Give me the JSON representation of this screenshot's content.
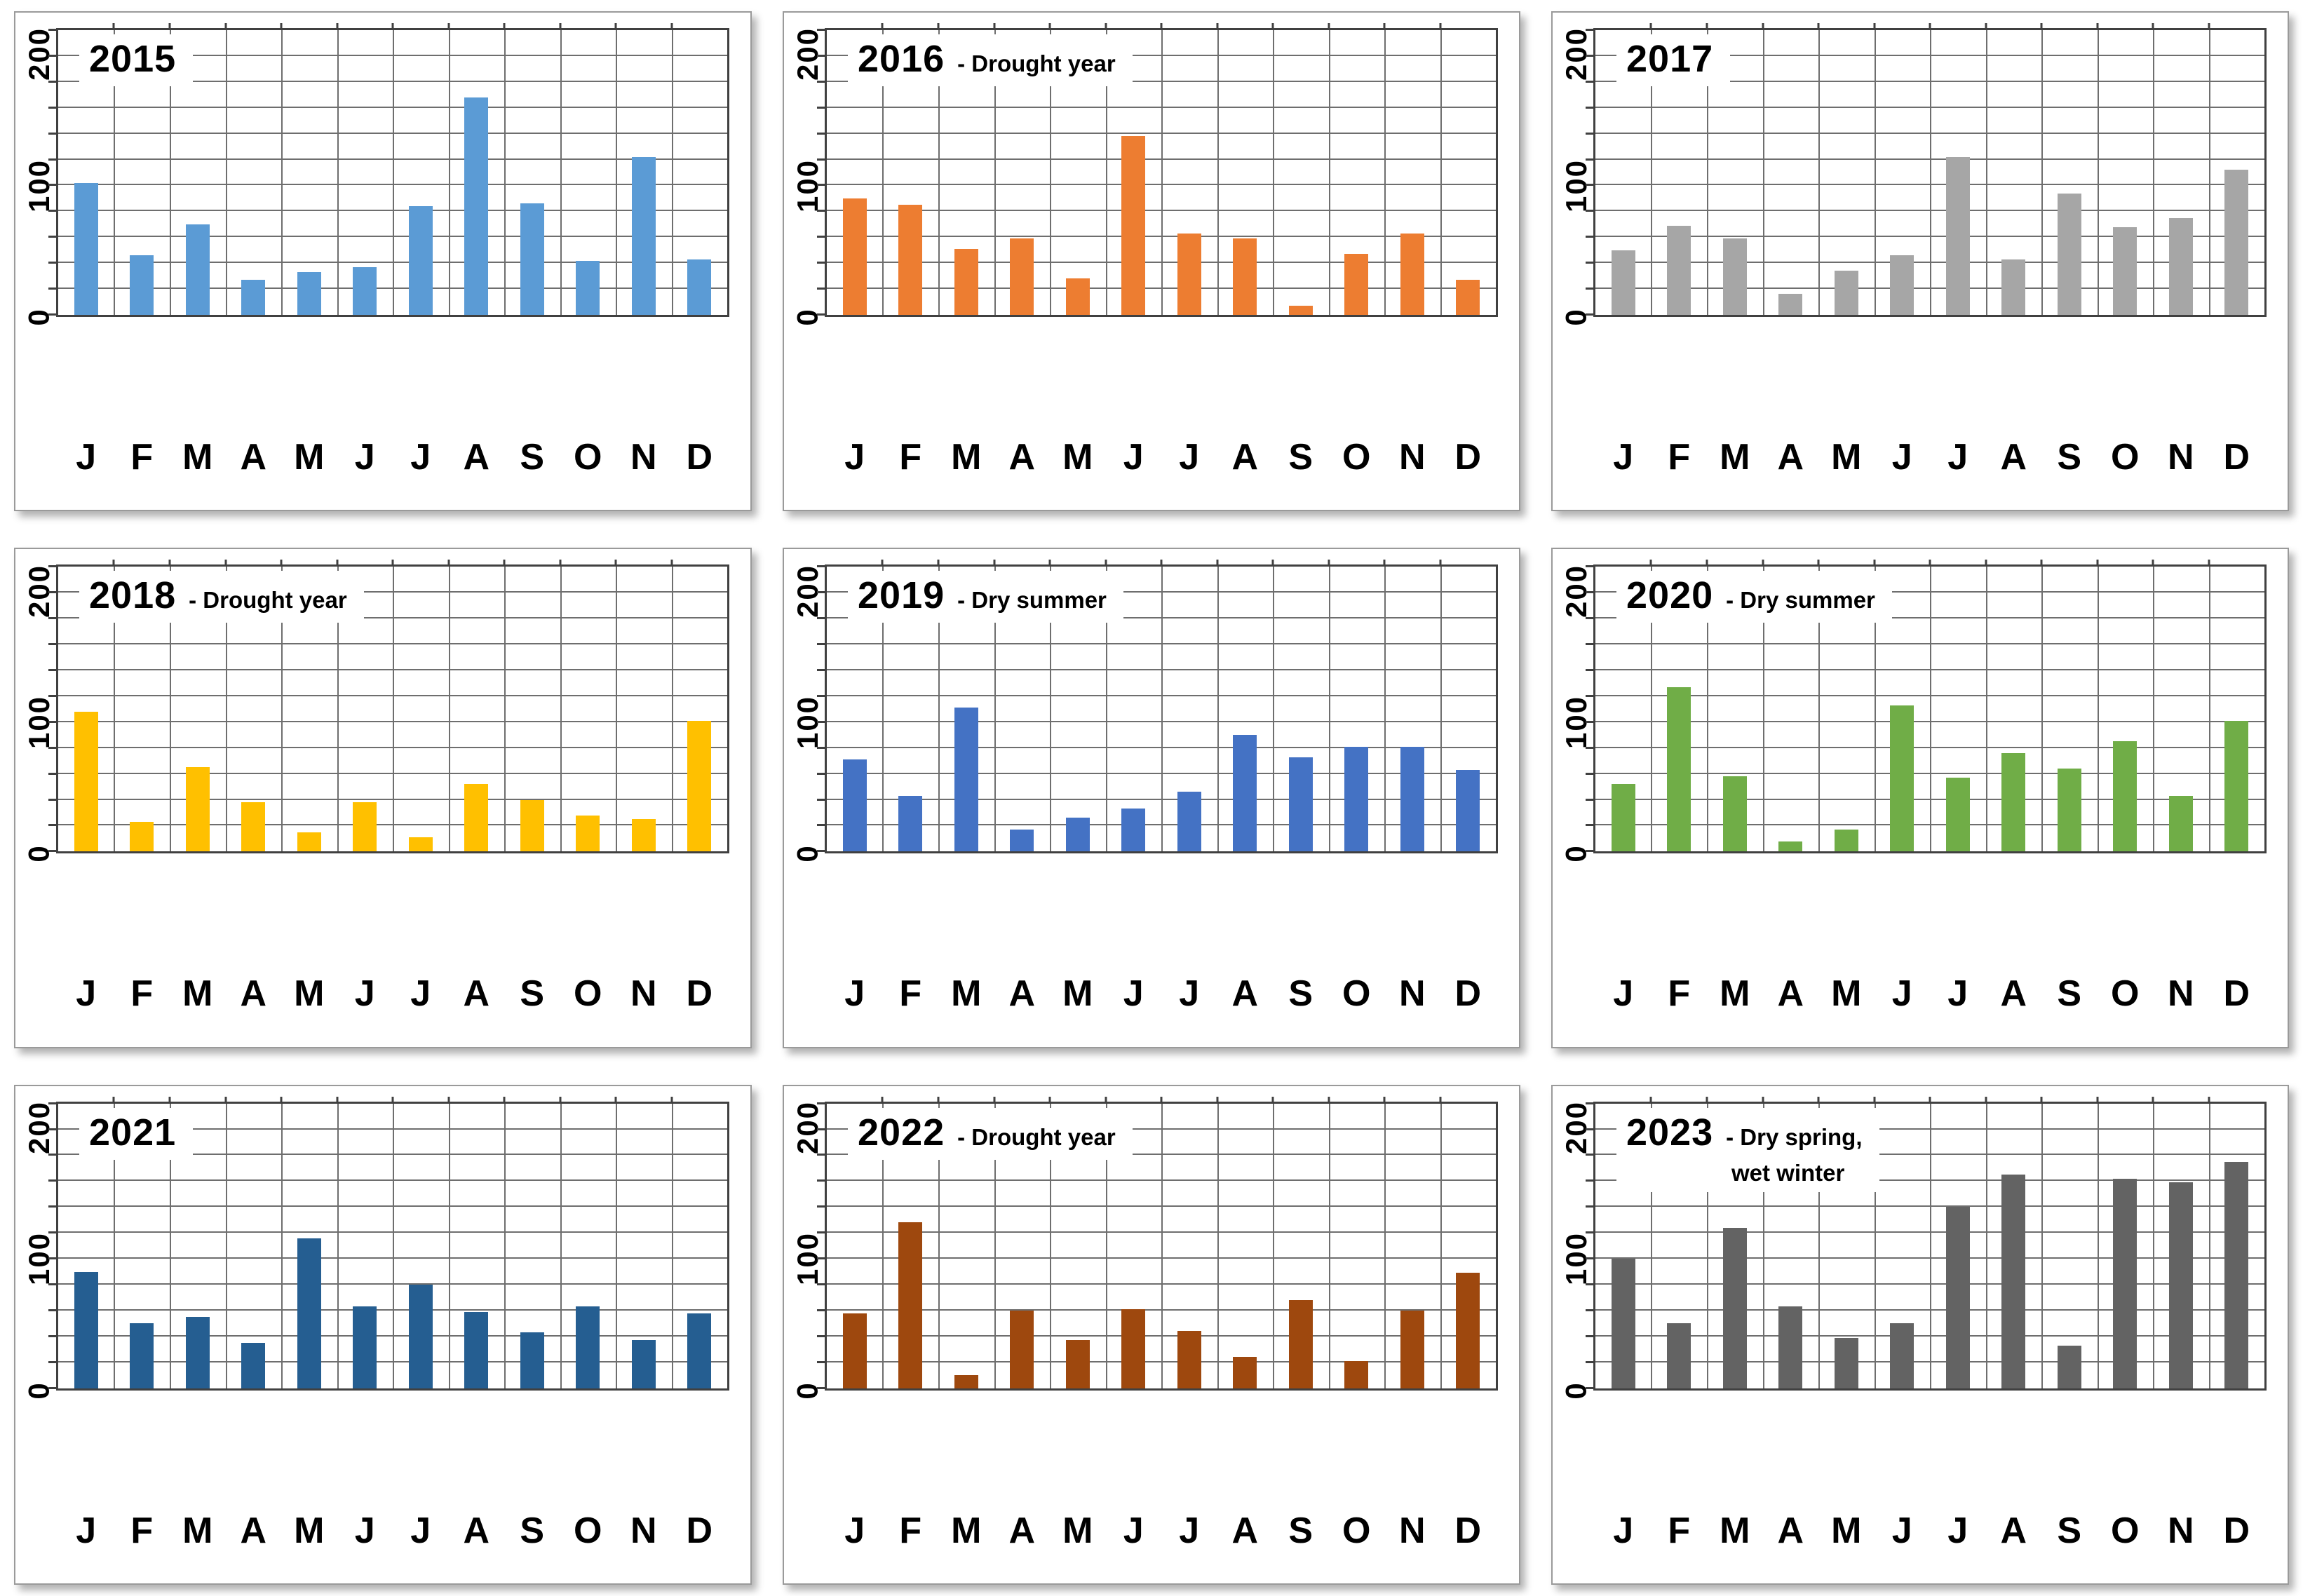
{
  "page": {
    "background": "#ffffff",
    "grid_color": "#6e6e6e",
    "axis_color": "#404040"
  },
  "months": [
    "J",
    "F",
    "M",
    "A",
    "M",
    "J",
    "J",
    "A",
    "S",
    "O",
    "N",
    "D"
  ],
  "axis": {
    "ymax": 220,
    "step": 20,
    "tick_labels": [
      {
        "value": 200,
        "label": "200"
      },
      {
        "value": 100,
        "label": "100"
      },
      {
        "value": 0,
        "label": "0"
      }
    ]
  },
  "chart_data": [
    {
      "type": "bar",
      "year": "2015",
      "note": "",
      "note2": "",
      "color": "#5B9BD5",
      "ylim": [
        0,
        220
      ],
      "values": [
        102,
        46,
        70,
        27,
        33,
        37,
        84,
        168,
        86,
        42,
        122,
        43
      ]
    },
    {
      "type": "bar",
      "year": "2016",
      "note": "- Drought year",
      "note2": "",
      "color": "#ED7D31",
      "ylim": [
        0,
        220
      ],
      "values": [
        90,
        85,
        51,
        59,
        28,
        138,
        63,
        59,
        7,
        47,
        63,
        27
      ]
    },
    {
      "type": "bar",
      "year": "2017",
      "note": "",
      "note2": "",
      "color": "#A6A6A6",
      "ylim": [
        0,
        220
      ],
      "values": [
        50,
        69,
        59,
        16,
        34,
        46,
        122,
        43,
        94,
        68,
        75,
        112
      ]
    },
    {
      "type": "bar",
      "year": "2018",
      "note": "- Drought year",
      "note2": "",
      "color": "#FFC000",
      "ylim": [
        0,
        220
      ],
      "values": [
        108,
        23,
        65,
        38,
        15,
        38,
        11,
        52,
        40,
        28,
        25,
        101
      ]
    },
    {
      "type": "bar",
      "year": "2019",
      "note": "- Dry summer",
      "note2": "",
      "color": "#4472C4",
      "ylim": [
        0,
        220
      ],
      "values": [
        71,
        43,
        111,
        17,
        26,
        33,
        46,
        90,
        73,
        81,
        81,
        63
      ]
    },
    {
      "type": "bar",
      "year": "2020",
      "note": "- Dry summer",
      "note2": "",
      "color": "#70AD47",
      "ylim": [
        0,
        220
      ],
      "values": [
        52,
        127,
        58,
        8,
        17,
        113,
        57,
        76,
        64,
        85,
        43,
        101
      ]
    },
    {
      "type": "bar",
      "year": "2021",
      "note": "",
      "note2": "",
      "color": "#255E91",
      "ylim": [
        0,
        220
      ],
      "values": [
        90,
        50,
        55,
        35,
        116,
        63,
        80,
        59,
        43,
        63,
        37,
        58
      ]
    },
    {
      "type": "bar",
      "year": "2022",
      "note": "- Drought year",
      "note2": "",
      "color": "#9E480E",
      "ylim": [
        0,
        220
      ],
      "values": [
        58,
        128,
        10,
        60,
        37,
        61,
        44,
        24,
        68,
        21,
        60,
        89
      ]
    },
    {
      "type": "bar",
      "year": "2023",
      "note": "- Dry spring,",
      "note2": "wet winter",
      "color": "#636363",
      "ylim": [
        0,
        220
      ],
      "values": [
        100,
        50,
        124,
        63,
        39,
        50,
        140,
        165,
        33,
        162,
        159,
        175
      ]
    }
  ]
}
